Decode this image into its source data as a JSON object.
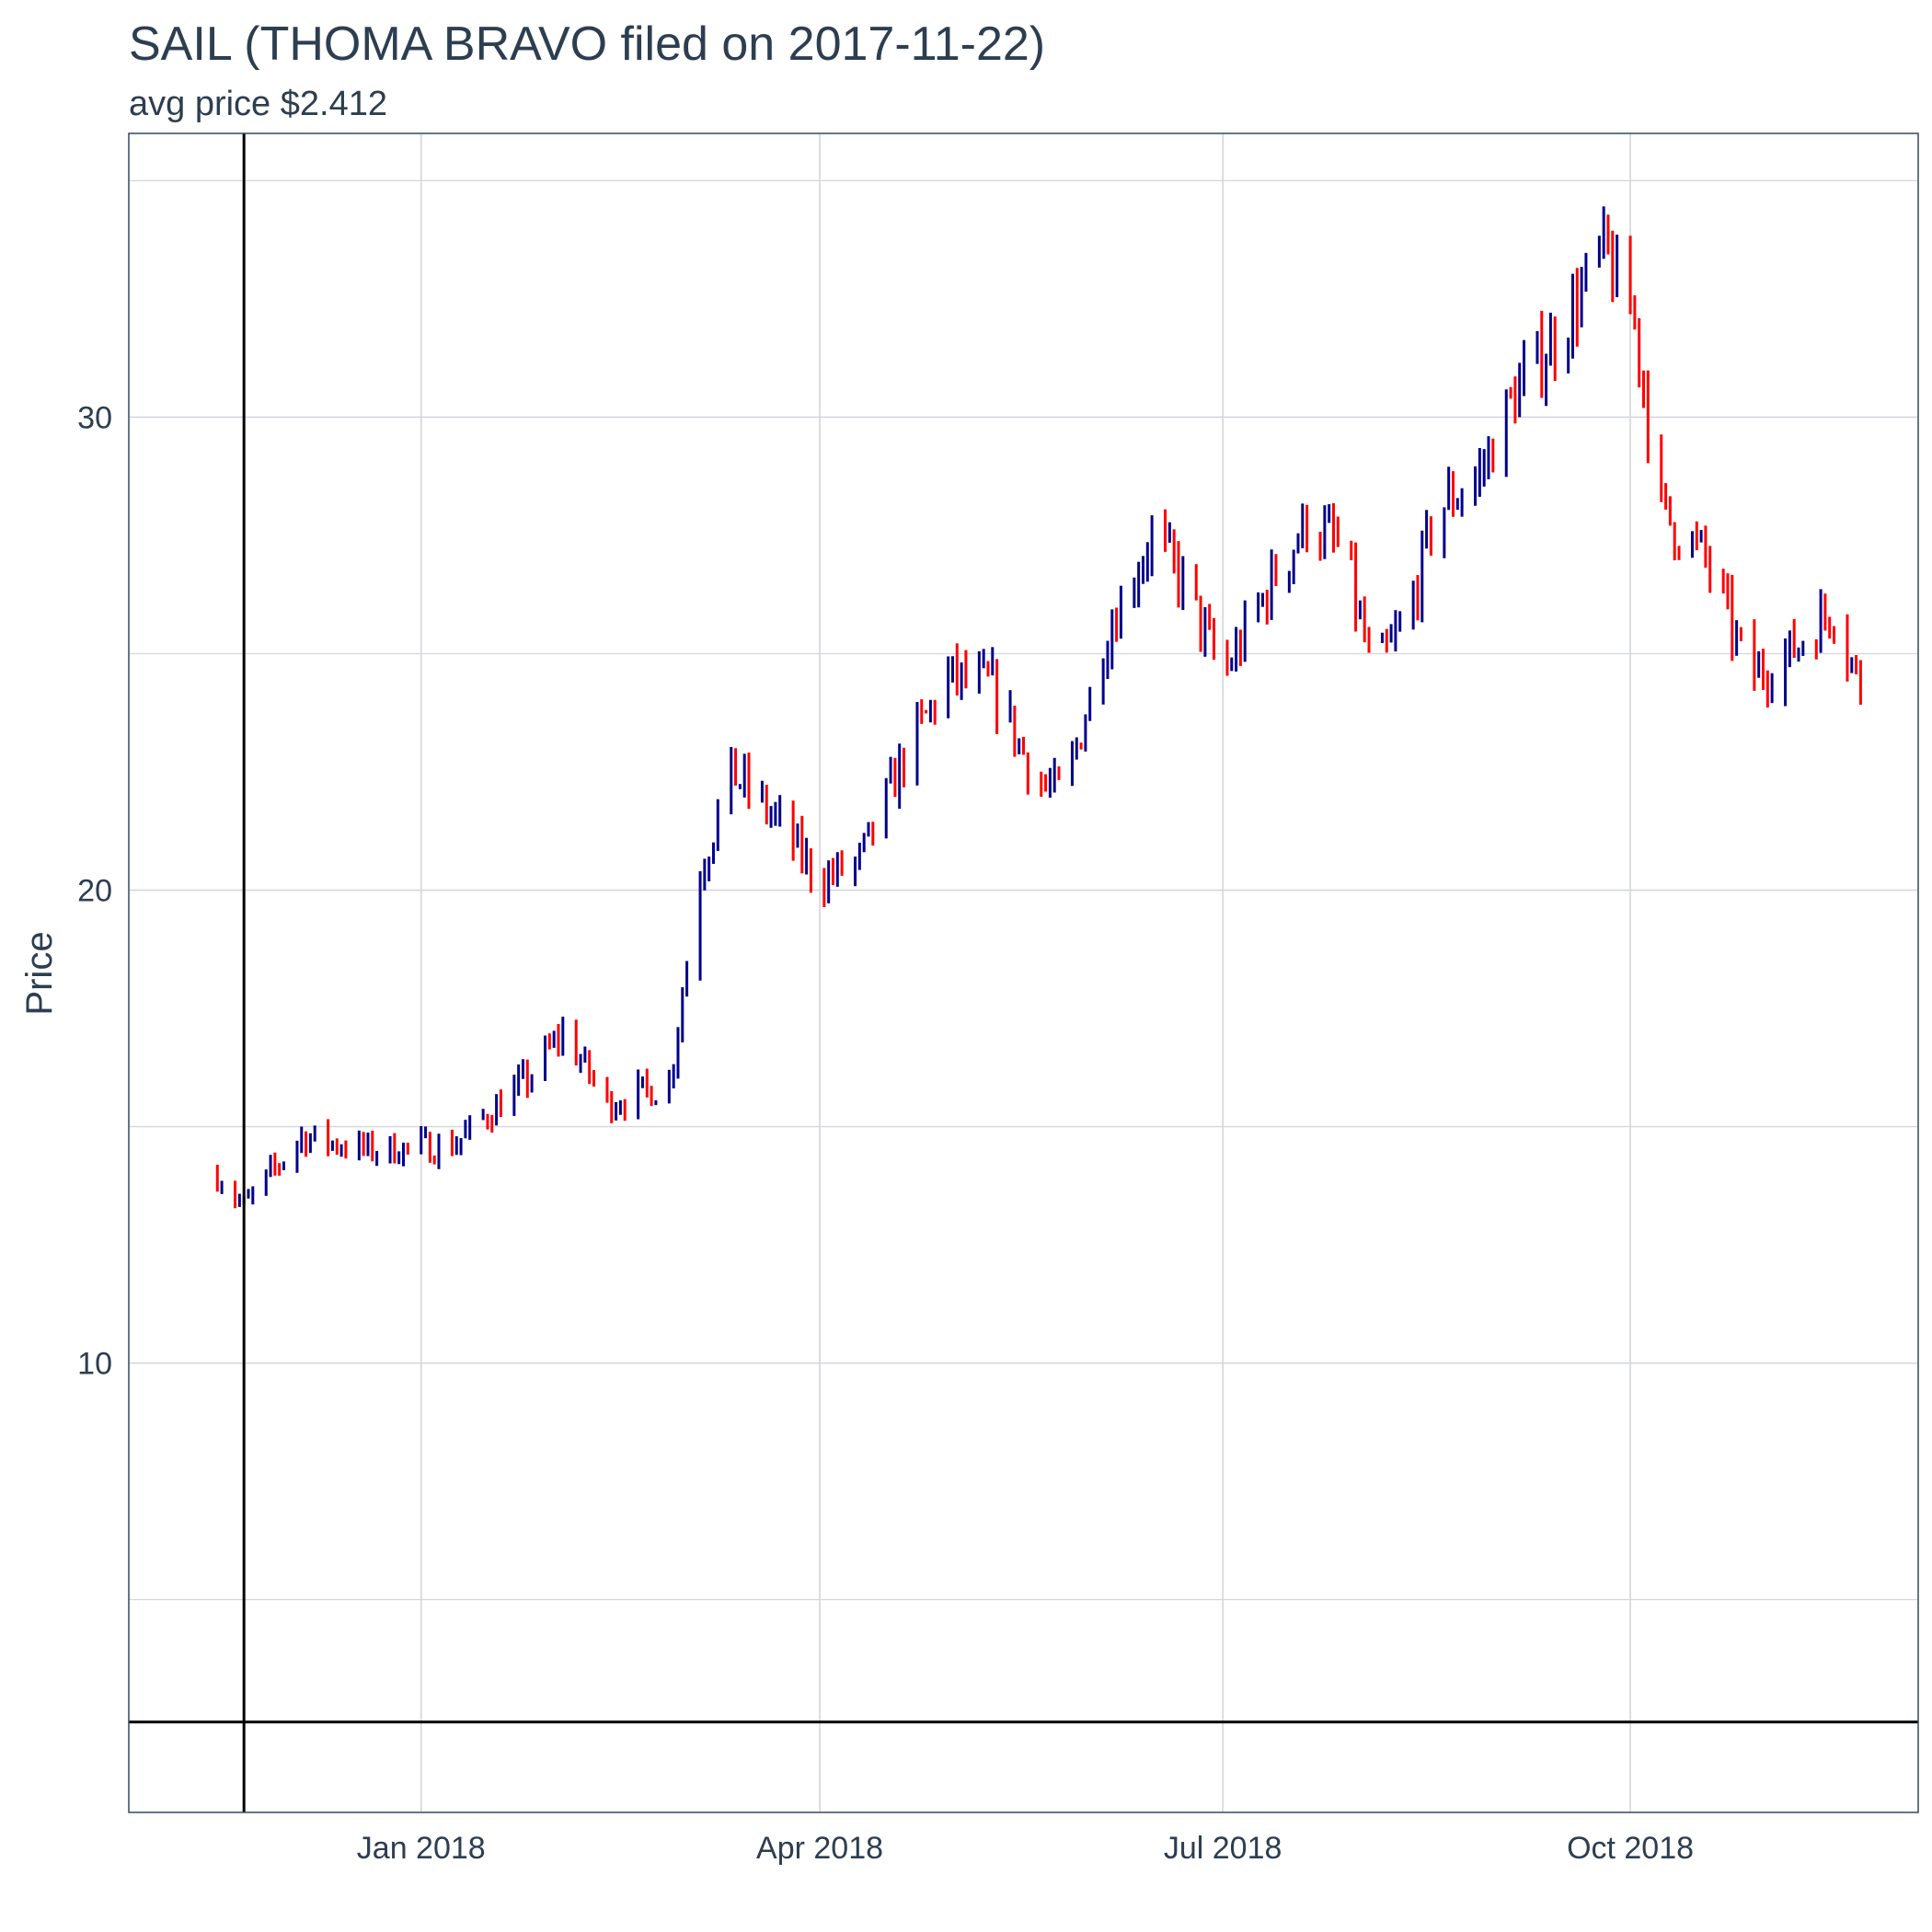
{
  "chart_data": {
    "type": "ohlc",
    "title": "SAIL (THOMA BRAVO filed on 2017-11-22)",
    "subtitle": "avg price $2.412",
    "xlabel": "",
    "ylabel": "Price",
    "xlim": [
      "2017-10-27",
      "2018-12-05"
    ],
    "ylim": [
      0.5,
      36.0
    ],
    "x_ticks": [
      {
        "date": "2018-01-01",
        "label": "Jan 2018"
      },
      {
        "date": "2018-04-01",
        "label": "Apr 2018"
      },
      {
        "date": "2018-07-01",
        "label": "Jul 2018"
      },
      {
        "date": "2018-10-01",
        "label": "Oct 2018"
      }
    ],
    "y_ticks": [
      10,
      20,
      30
    ],
    "y_minor_gridlines": [
      5,
      15,
      25,
      35
    ],
    "grid": true,
    "reference_lines": {
      "vertical_date": "2017-11-22",
      "horizontal_price": 2.412
    },
    "colors": {
      "up": "#00008b",
      "down": "#ff0000",
      "reference": "#000000",
      "grid": "#d3d6db",
      "text": "#2c3e50"
    },
    "anchors": [
      {
        "date": "2017-11-16",
        "price": 14.0
      },
      {
        "date": "2017-11-22",
        "price": 13.3
      },
      {
        "date": "2017-12-05",
        "price": 14.8
      },
      {
        "date": "2017-12-20",
        "price": 14.5
      },
      {
        "date": "2018-01-08",
        "price": 14.6
      },
      {
        "date": "2018-01-25",
        "price": 16.0
      },
      {
        "date": "2018-02-02",
        "price": 17.0
      },
      {
        "date": "2018-02-12",
        "price": 15.5
      },
      {
        "date": "2018-02-26",
        "price": 15.9
      },
      {
        "date": "2018-03-05",
        "price": 20.4
      },
      {
        "date": "2018-03-12",
        "price": 22.5
      },
      {
        "date": "2018-03-22",
        "price": 21.5
      },
      {
        "date": "2018-04-01",
        "price": 20.2
      },
      {
        "date": "2018-04-10",
        "price": 20.6
      },
      {
        "date": "2018-04-20",
        "price": 22.8
      },
      {
        "date": "2018-04-30",
        "price": 24.5
      },
      {
        "date": "2018-05-10",
        "price": 24.3
      },
      {
        "date": "2018-05-20",
        "price": 22.3
      },
      {
        "date": "2018-05-26",
        "price": 22.0
      },
      {
        "date": "2018-06-05",
        "price": 25.5
      },
      {
        "date": "2018-06-15",
        "price": 27.5
      },
      {
        "date": "2018-06-22",
        "price": 26.5
      },
      {
        "date": "2018-07-01",
        "price": 24.5
      },
      {
        "date": "2018-07-12",
        "price": 26.5
      },
      {
        "date": "2018-07-20",
        "price": 27.8
      },
      {
        "date": "2018-07-28",
        "price": 27.2
      },
      {
        "date": "2018-08-04",
        "price": 24.5
      },
      {
        "date": "2018-08-12",
        "price": 25.8
      },
      {
        "date": "2018-08-18",
        "price": 28.0
      },
      {
        "date": "2018-08-28",
        "price": 28.8
      },
      {
        "date": "2018-09-05",
        "price": 30.5
      },
      {
        "date": "2018-09-15",
        "price": 31.8
      },
      {
        "date": "2018-09-25",
        "price": 33.5
      },
      {
        "date": "2018-10-02",
        "price": 32.0
      },
      {
        "date": "2018-10-08",
        "price": 28.0
      },
      {
        "date": "2018-10-18",
        "price": 27.0
      },
      {
        "date": "2018-10-28",
        "price": 24.5
      },
      {
        "date": "2018-11-06",
        "price": 25.0
      },
      {
        "date": "2018-11-16",
        "price": 26.0
      },
      {
        "date": "2018-11-22",
        "price": 24.2
      }
    ]
  }
}
